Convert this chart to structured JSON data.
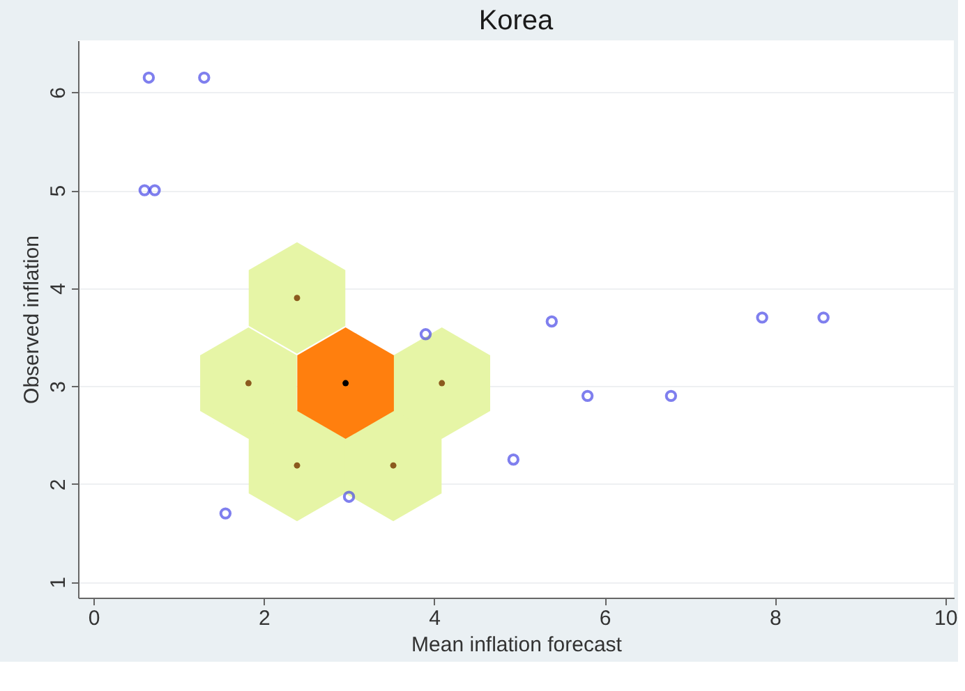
{
  "chart_data": {
    "type": "scatter",
    "title": "Korea",
    "xlabel": "Mean inflation forecast",
    "ylabel": "Observed inflation",
    "xlim": [
      -0.18,
      10.1
    ],
    "ylim": [
      0.84,
      6.53
    ],
    "xticks": [
      0,
      2,
      4,
      6,
      8,
      10
    ],
    "yticks": [
      1,
      2,
      3,
      4,
      5,
      6
    ],
    "grid": "y",
    "series": [
      {
        "color": "#8b5a1e",
        "x": [
          2.39,
          1.82,
          4.09,
          2.39,
          3.52
        ],
        "values": [
          3.9,
          3.03,
          3.03,
          2.19,
          2.19
        ]
      },
      {
        "color": "#000000",
        "x": [
          2.96
        ],
        "values": [
          3.03
        ]
      },
      {
        "color": "#4a4ae8",
        "marker": "circle",
        "x": [
          0.65,
          1.3,
          0.6,
          0.72,
          1.55,
          3.0,
          3.9,
          4.93,
          5.38,
          5.8,
          6.78,
          7.85,
          8.57
        ],
        "values": [
          6.15,
          6.15,
          5.0,
          5.0,
          1.7,
          1.87,
          3.53,
          2.25,
          3.66,
          2.9,
          2.9,
          3.7,
          3.7
        ]
      }
    ]
  }
}
